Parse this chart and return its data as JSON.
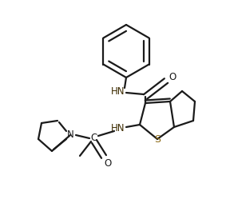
{
  "bg_color": "#ffffff",
  "line_color": "#1a1a1a",
  "s_color": "#8B6914",
  "lw": 1.6,
  "fig_width": 2.88,
  "fig_height": 2.69,
  "dpi": 100,
  "xlim": [
    0,
    288
  ],
  "ylim": [
    0,
    269
  ]
}
